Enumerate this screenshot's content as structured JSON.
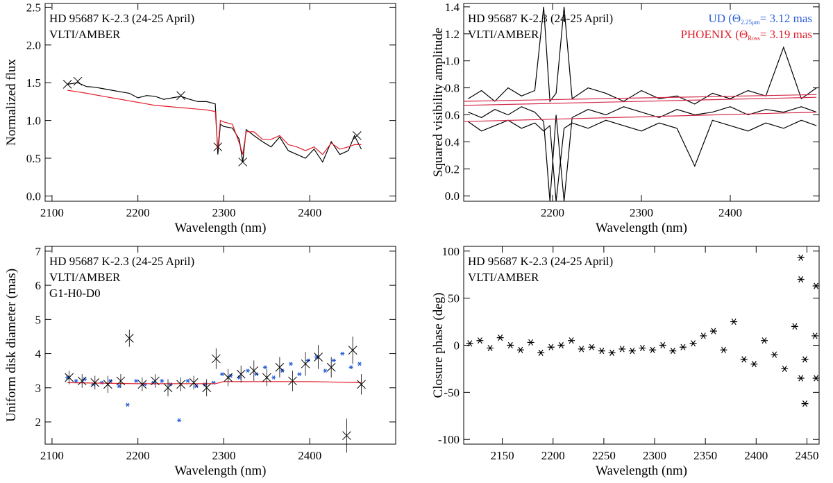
{
  "chart_data": [
    {
      "type": "line",
      "xlabel": "Wavelength (nm)",
      "ylabel": "Normalized flux",
      "annotations": [
        "HD 95687 K-2.3 (24-25 April)",
        "VLTI/AMBER"
      ],
      "xlim": [
        2092,
        2500
      ],
      "xticks": [
        2100,
        2200,
        2300,
        2400
      ],
      "ylim": [
        -0.07,
        2.55
      ],
      "yticks": [
        {
          "value": 0,
          "label": "0.0"
        },
        {
          "value": 0.5,
          "label": "0.5"
        },
        {
          "value": 1,
          "label": "1.0"
        },
        {
          "value": 1.5,
          "label": "1.5"
        },
        {
          "value": 2,
          "label": "2.0"
        },
        {
          "value": 2.5,
          "label": "2.5"
        }
      ],
      "series": [
        {
          "mode": "line",
          "color": "#000000",
          "x": [
            2118,
            2130,
            2140,
            2150,
            2160,
            2170,
            2180,
            2190,
            2200,
            2210,
            2220,
            2230,
            2240,
            2250,
            2260,
            2270,
            2280,
            2290,
            2293,
            2296,
            2300,
            2310,
            2318,
            2322,
            2326,
            2335,
            2345,
            2355,
            2365,
            2375,
            2385,
            2395,
            2405,
            2415,
            2425,
            2435,
            2445,
            2452,
            2460
          ],
          "values": [
            1.48,
            1.5,
            1.45,
            1.44,
            1.42,
            1.4,
            1.38,
            1.36,
            1.3,
            1.33,
            1.32,
            1.28,
            1.3,
            1.32,
            1.28,
            1.25,
            1.25,
            1.22,
            0.55,
            0.95,
            0.92,
            0.9,
            0.75,
            0.45,
            0.88,
            0.8,
            0.72,
            0.65,
            0.78,
            0.6,
            0.55,
            0.5,
            0.62,
            0.45,
            0.72,
            0.55,
            0.6,
            0.8,
            0.62
          ]
        },
        {
          "mode": "line",
          "color": "#e0202a",
          "x": [
            2118,
            2130,
            2140,
            2150,
            2160,
            2170,
            2180,
            2190,
            2200,
            2210,
            2220,
            2230,
            2240,
            2250,
            2260,
            2270,
            2280,
            2290,
            2293,
            2296,
            2300,
            2310,
            2318,
            2322,
            2326,
            2335,
            2345,
            2355,
            2365,
            2375,
            2385,
            2395,
            2405,
            2415,
            2425,
            2435,
            2445,
            2452,
            2460
          ],
          "values": [
            1.4,
            1.38,
            1.36,
            1.34,
            1.32,
            1.3,
            1.28,
            1.26,
            1.24,
            1.22,
            1.2,
            1.19,
            1.18,
            1.17,
            1.16,
            1.15,
            1.14,
            1.12,
            0.62,
            1.0,
            0.98,
            0.95,
            0.7,
            0.55,
            0.85,
            0.85,
            0.75,
            0.75,
            0.8,
            0.68,
            0.65,
            0.6,
            0.65,
            0.55,
            0.7,
            0.62,
            0.65,
            0.68,
            0.68
          ]
        },
        {
          "mode": "x-marker",
          "color": "#000000",
          "x": [
            2118,
            2130,
            2250,
            2293,
            2322,
            2455
          ],
          "values": [
            1.48,
            1.52,
            1.33,
            0.65,
            0.45,
            0.8
          ]
        }
      ]
    },
    {
      "type": "line",
      "xlabel": "Wavelength (nm)",
      "ylabel": "Squared visibility amplitude",
      "annotations": [
        "HD 95687 K-2.3 (24-25 April)",
        "VLTI/AMBER"
      ],
      "model_labels": [
        {
          "parts": [
            "UD (Θ",
            "2.25μm",
            "= 3.12 mas"
          ],
          "color": "#2a5fd8"
        },
        {
          "parts": [
            "PHOENIX (Θ",
            "Ross",
            "= 3.19 mas"
          ],
          "color": "#e0202a"
        }
      ],
      "xlim": [
        2100,
        2500
      ],
      "xticks": [
        2200,
        2300,
        2400
      ],
      "ylim": [
        -0.04,
        1.425
      ],
      "yticks": [
        {
          "value": 0,
          "label": "0.0"
        },
        {
          "value": 0.2,
          "label": "0.2"
        },
        {
          "value": 0.4,
          "label": "0.4"
        },
        {
          "value": 0.6,
          "label": "0.6"
        },
        {
          "value": 0.8,
          "label": "0.8"
        },
        {
          "value": 1,
          "label": "1.0"
        },
        {
          "value": 1.2,
          "label": "1.2"
        },
        {
          "value": 1.4,
          "label": "1.4"
        }
      ],
      "series": [
        {
          "mode": "line",
          "color": "#000000",
          "x": [
            2105,
            2120,
            2135,
            2150,
            2165,
            2180,
            2190,
            2197,
            2204,
            2213,
            2222,
            2240,
            2260,
            2280,
            2300,
            2320,
            2340,
            2360,
            2380,
            2400,
            2420,
            2440,
            2460,
            2480,
            2497
          ],
          "values": [
            0.72,
            0.78,
            0.7,
            0.8,
            0.74,
            0.78,
            1.4,
            0.7,
            0.76,
            1.4,
            0.72,
            0.8,
            0.76,
            0.7,
            0.78,
            0.72,
            0.74,
            0.68,
            0.76,
            0.72,
            0.78,
            0.74,
            1.1,
            0.72,
            0.8
          ]
        },
        {
          "mode": "line",
          "color": "#000000",
          "x": [
            2105,
            2120,
            2135,
            2150,
            2165,
            2180,
            2190,
            2197,
            2204,
            2213,
            2222,
            2240,
            2260,
            2280,
            2300,
            2320,
            2340,
            2360,
            2380,
            2400,
            2420,
            2440,
            2460,
            2480,
            2497
          ],
          "values": [
            0.62,
            0.58,
            0.64,
            0.6,
            0.66,
            0.62,
            0.55,
            -0.04,
            0.6,
            -0.04,
            0.58,
            0.64,
            0.6,
            0.66,
            0.62,
            0.58,
            0.64,
            0.6,
            0.62,
            0.66,
            0.6,
            0.64,
            0.62,
            0.66,
            0.62
          ]
        },
        {
          "mode": "line",
          "color": "#000000",
          "x": [
            2105,
            2120,
            2135,
            2150,
            2165,
            2180,
            2190,
            2197,
            2204,
            2213,
            2222,
            2240,
            2260,
            2280,
            2300,
            2320,
            2340,
            2360,
            2380,
            2400,
            2420,
            2440,
            2460,
            2480,
            2497
          ],
          "values": [
            0.55,
            0.48,
            0.52,
            0.56,
            0.5,
            0.54,
            0.48,
            0.52,
            -0.04,
            0.5,
            0.54,
            0.5,
            0.56,
            0.52,
            0.48,
            0.54,
            0.5,
            0.22,
            0.56,
            0.52,
            0.48,
            0.54,
            0.5,
            0.56,
            0.52
          ]
        },
        {
          "mode": "line",
          "color": "#d42a4a",
          "x": [
            2100,
            2497
          ],
          "values": [
            0.7,
            0.75
          ]
        },
        {
          "mode": "line",
          "color": "#d42a4a",
          "x": [
            2100,
            2497
          ],
          "values": [
            0.67,
            0.73
          ]
        },
        {
          "mode": "line",
          "color": "#d42a4a",
          "x": [
            2100,
            2497
          ],
          "values": [
            0.55,
            0.62
          ]
        }
      ]
    },
    {
      "type": "scatter",
      "xlabel": "Wavelength (nm)",
      "ylabel": "Uniform disk diameter (mas)",
      "annotations": [
        "HD 95687 K-2.3 (24-25 April)",
        "VLTI/AMBER",
        "G1-H0-D0"
      ],
      "xlim": [
        2092,
        2500
      ],
      "xticks": [
        2100,
        2200,
        2300,
        2400
      ],
      "ylim": [
        1.35,
        7.14
      ],
      "yticks": [
        2,
        3,
        4,
        5,
        6,
        7
      ],
      "series": [
        {
          "mode": "asterisk",
          "color": "#2a5fd8",
          "x": [
            2118,
            2128,
            2138,
            2148,
            2158,
            2168,
            2178,
            2188,
            2198,
            2208,
            2218,
            2228,
            2238,
            2248,
            2258,
            2268,
            2278,
            2288,
            2298,
            2308,
            2318,
            2328,
            2338,
            2348,
            2358,
            2368,
            2378,
            2388,
            2398,
            2408,
            2418,
            2428,
            2438,
            2448,
            2458
          ],
          "values": [
            3.3,
            3.2,
            3.25,
            3.1,
            3.15,
            3.2,
            3.05,
            2.5,
            3.2,
            3.1,
            3.15,
            3.2,
            3.1,
            2.05,
            3.2,
            3.05,
            3.1,
            3.15,
            3.4,
            3.35,
            3.3,
            3.5,
            3.4,
            3.6,
            3.3,
            3.5,
            3.7,
            3.4,
            3.8,
            3.9,
            3.5,
            3.8,
            4.0,
            3.6,
            3.7
          ]
        },
        {
          "mode": "line",
          "color": "#e0202a",
          "x": [
            2118,
            2200,
            2290,
            2300,
            2400,
            2460
          ],
          "values": [
            3.15,
            3.12,
            3.12,
            3.18,
            3.18,
            3.15
          ]
        },
        {
          "mode": "x-marker",
          "color": "#000000",
          "x": [
            2120,
            2135,
            2150,
            2165,
            2180,
            2190,
            2205,
            2220,
            2235,
            2250,
            2265,
            2280,
            2291,
            2305,
            2320,
            2335,
            2350,
            2365,
            2380,
            2395,
            2410,
            2425,
            2443,
            2450,
            2460
          ],
          "values": [
            3.3,
            3.2,
            3.15,
            3.1,
            3.2,
            4.45,
            3.1,
            3.2,
            3.0,
            3.1,
            3.15,
            3.0,
            3.85,
            3.3,
            3.4,
            3.5,
            3.3,
            3.6,
            3.2,
            3.7,
            3.9,
            3.6,
            1.6,
            4.1,
            3.1
          ],
          "errors": [
            0.2,
            0.2,
            0.2,
            0.25,
            0.2,
            0.25,
            0.2,
            0.2,
            0.25,
            0.2,
            0.2,
            0.25,
            0.3,
            0.25,
            0.25,
            0.3,
            0.25,
            0.3,
            0.3,
            0.35,
            0.35,
            0.3,
            0.5,
            0.4,
            0.3
          ]
        }
      ]
    },
    {
      "type": "scatter",
      "xlabel": "Wavelength (nm)",
      "ylabel": "Closure phase (deg)",
      "annotations": [
        "HD 95687 K-2.3 (24-25 April)",
        "VLTI/AMBER"
      ],
      "xlim": [
        2112,
        2462
      ],
      "xticks": [
        2150,
        2200,
        2250,
        2300,
        2350,
        2400,
        2450
      ],
      "ylim": [
        -105,
        105
      ],
      "yticks": [
        -100,
        -50,
        0,
        50,
        100
      ],
      "series": [
        {
          "mode": "asterisk",
          "color": "#000000",
          "x": [
            2118,
            2128,
            2138,
            2148,
            2158,
            2168,
            2178,
            2188,
            2198,
            2208,
            2218,
            2228,
            2238,
            2248,
            2258,
            2268,
            2278,
            2288,
            2298,
            2308,
            2318,
            2328,
            2338,
            2348,
            2358,
            2368,
            2378,
            2388,
            2398,
            2408,
            2418,
            2428,
            2438,
            2448,
            2458,
            2444,
            2444,
            2444,
            2448,
            2459,
            2459
          ],
          "values": [
            2,
            5,
            -3,
            8,
            0,
            -5,
            3,
            -8,
            -2,
            0,
            5,
            -4,
            -2,
            -6,
            -8,
            -4,
            -6,
            -3,
            -5,
            0,
            -6,
            -2,
            2,
            10,
            15,
            -5,
            25,
            -15,
            -20,
            5,
            -10,
            -25,
            20,
            -15,
            10,
            93,
            70,
            -35,
            -62,
            63,
            -35
          ]
        }
      ]
    }
  ]
}
